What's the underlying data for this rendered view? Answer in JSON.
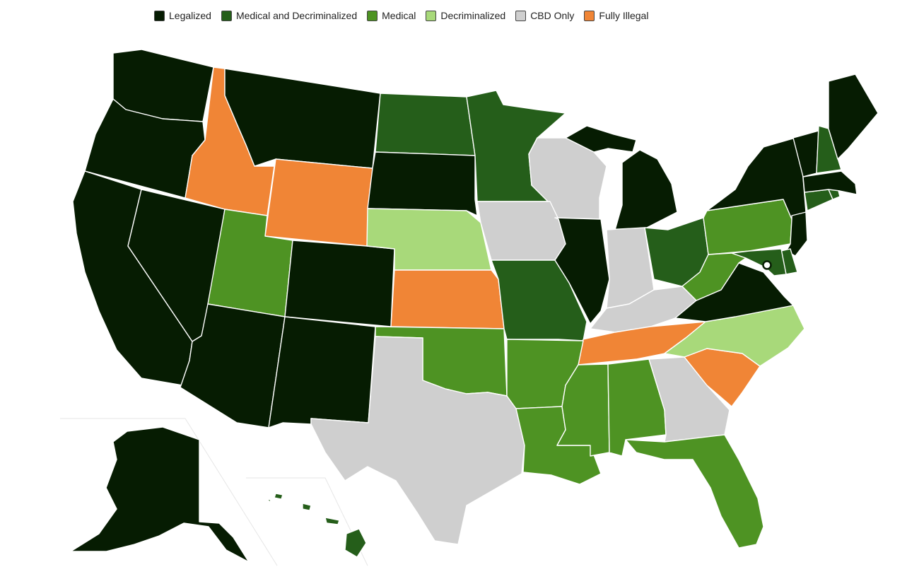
{
  "legend": [
    {
      "key": "legalized",
      "label": "Legalized",
      "color": "#061c02"
    },
    {
      "key": "med_decrim",
      "label": "Medical and Decriminalized",
      "color": "#255e1a"
    },
    {
      "key": "medical",
      "label": "Medical",
      "color": "#4e9323"
    },
    {
      "key": "decrim",
      "label": "Decriminalized",
      "color": "#a8d97a"
    },
    {
      "key": "cbd",
      "label": "CBD Only",
      "color": "#cfcfcf"
    },
    {
      "key": "illegal",
      "label": "Fully Illegal",
      "color": "#f08536"
    }
  ],
  "states": {
    "WA": "legalized",
    "OR": "legalized",
    "CA": "legalized",
    "NV": "legalized",
    "AZ": "legalized",
    "MT": "legalized",
    "CO": "legalized",
    "NM": "legalized",
    "SD": "legalized",
    "IL": "legalized",
    "MI": "legalized",
    "MN_UP": "legalized",
    "NY": "legalized",
    "VT": "legalized",
    "ME": "legalized",
    "MA": "legalized",
    "NJ": "legalized",
    "VA": "legalized",
    "AK": "legalized",
    "DE": "med_decrim",
    "ID": "illegal",
    "WY": "illegal",
    "KS": "illegal",
    "TN": "illegal",
    "SC": "illegal",
    "ND": "med_decrim",
    "MN": "med_decrim",
    "MO": "med_decrim",
    "OH": "med_decrim",
    "NH": "med_decrim",
    "CT": "med_decrim",
    "RI": "med_decrim",
    "MD": "med_decrim",
    "HI": "med_decrim",
    "UT": "medical",
    "OK": "medical",
    "AR": "medical",
    "LA": "medical",
    "MS": "medical",
    "AL": "medical",
    "FL": "medical",
    "PA": "medical",
    "WV": "medical",
    "NE": "decrim",
    "NC": "decrim",
    "WI": "cbd",
    "IA": "cbd",
    "IN": "cbd",
    "KY": "cbd",
    "GA": "cbd",
    "TX": "cbd"
  }
}
